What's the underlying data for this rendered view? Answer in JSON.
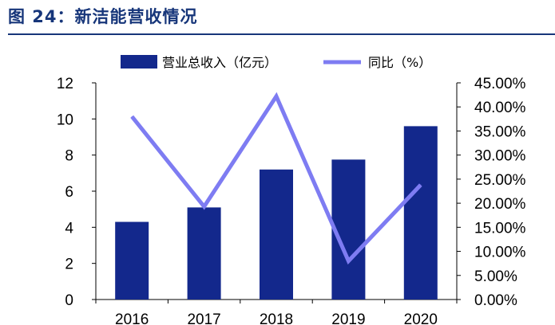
{
  "figure": {
    "title": "图 24：新洁能营收情况"
  },
  "colors": {
    "title": "#17367a",
    "bar": "#13288c",
    "line": "#7e7cf2",
    "axis": "#000000"
  },
  "chart_data": {
    "type": "bar",
    "categories": [
      "2016",
      "2017",
      "2018",
      "2019",
      "2020"
    ],
    "series": [
      {
        "name": "营业总收入（亿元）",
        "type": "bar",
        "axis": "left",
        "values": [
          4.3,
          5.1,
          7.2,
          7.75,
          9.6
        ]
      },
      {
        "name": "同比（%）",
        "type": "line",
        "axis": "right",
        "values": [
          38.0,
          19.3,
          42.2,
          8.0,
          23.8
        ]
      }
    ],
    "left_axis": {
      "ylim": [
        0,
        12
      ],
      "ticks": [
        0,
        2,
        4,
        6,
        8,
        10,
        12
      ],
      "tick_labels": [
        "0",
        "2",
        "4",
        "6",
        "8",
        "10",
        "12"
      ]
    },
    "right_axis": {
      "ylim": [
        0,
        45
      ],
      "ticks": [
        0,
        5,
        10,
        15,
        20,
        25,
        30,
        35,
        40,
        45
      ],
      "tick_labels": [
        "0.00%",
        "5.00%",
        "10.00%",
        "15.00%",
        "20.00%",
        "25.00%",
        "30.00%",
        "35.00%",
        "40.00%",
        "45.00%"
      ]
    },
    "grid": false,
    "legend_position": "top-center"
  }
}
